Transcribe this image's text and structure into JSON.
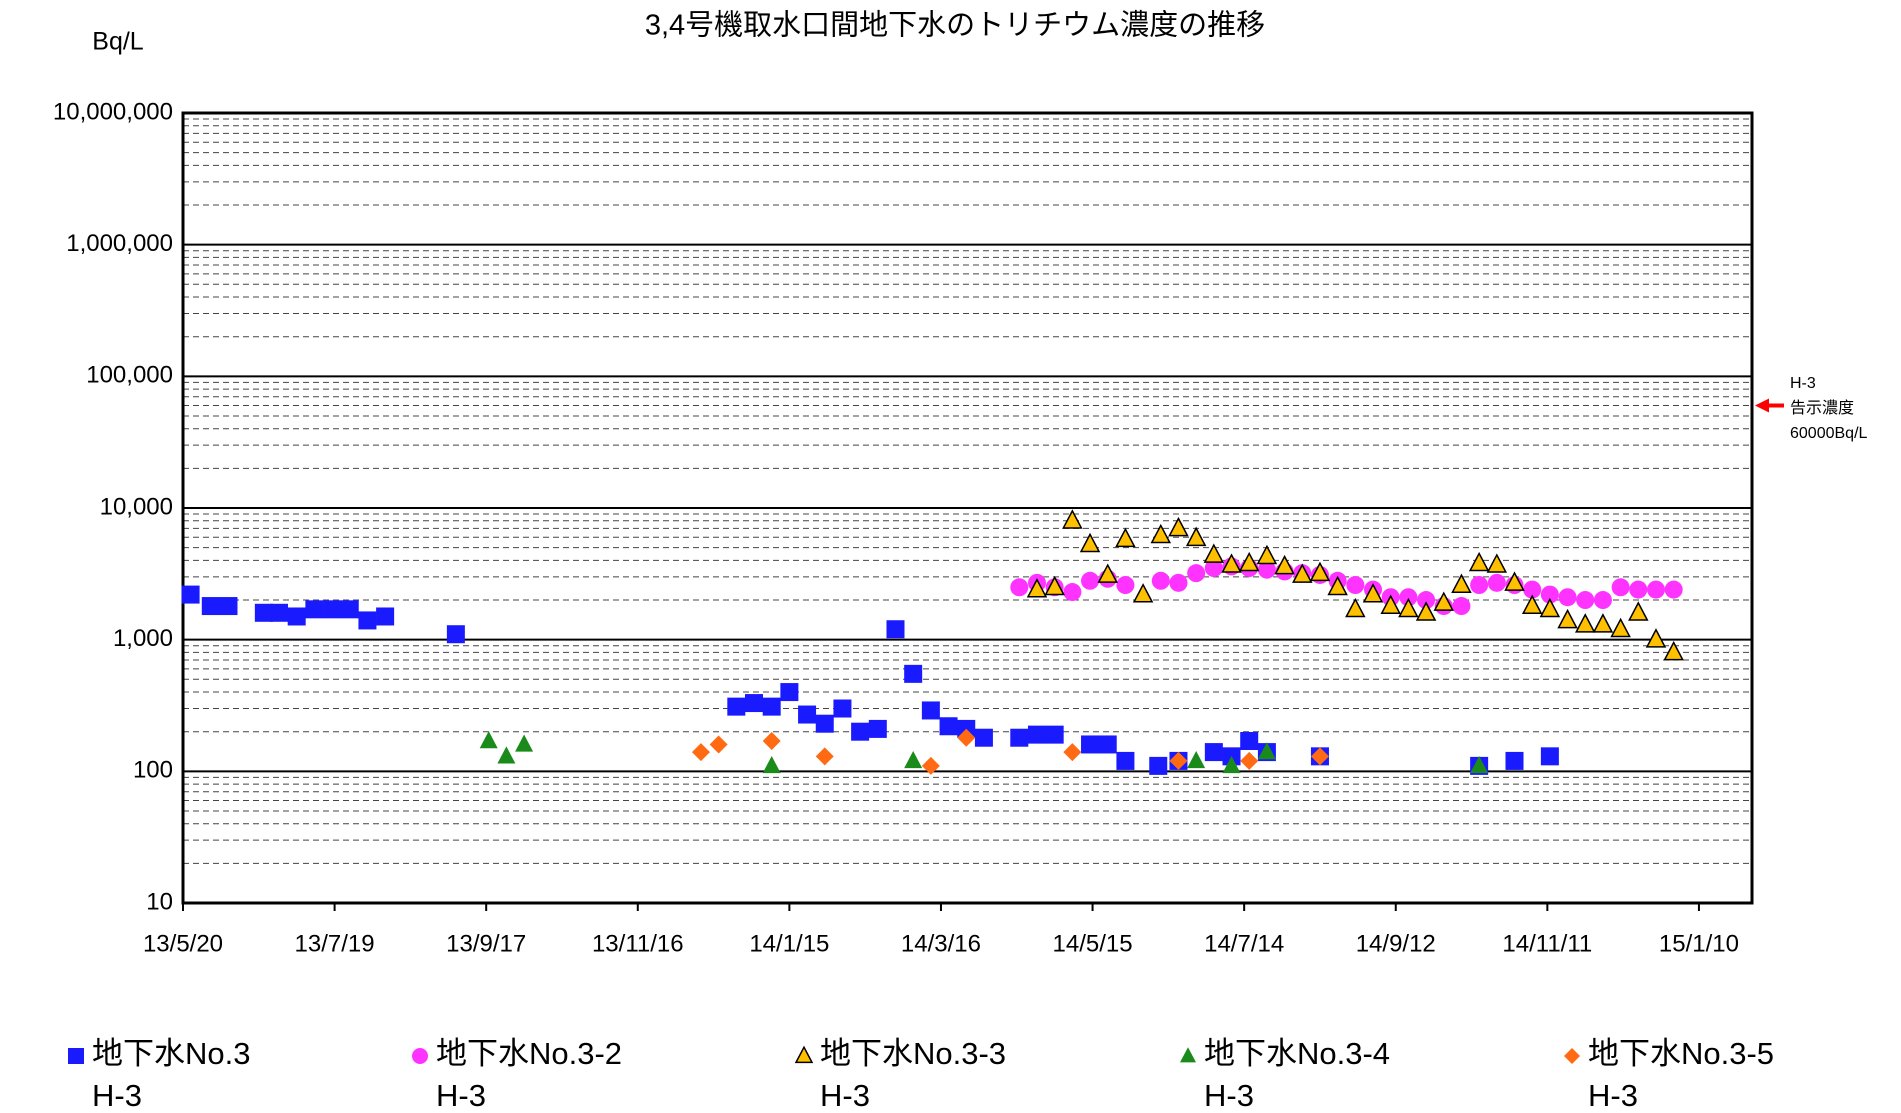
{
  "chart_data": {
    "type": "scatter",
    "title": "3,4号機取水口間地下水のトリチウム濃度の推移",
    "y_label": "Bq/L",
    "log_y": true,
    "grid": true,
    "minor_grid": true,
    "xlim": [
      "13/5/20",
      "15/1/31"
    ],
    "xticks": [
      "13/5/20",
      "13/7/19",
      "13/9/17",
      "13/11/16",
      "14/1/15",
      "14/3/16",
      "14/5/15",
      "14/7/14",
      "14/9/12",
      "14/11/11",
      "15/1/10"
    ],
    "ylim": [
      10,
      10000000
    ],
    "yticks": [
      {
        "value": 10,
        "label": "10"
      },
      {
        "value": 100,
        "label": "100"
      },
      {
        "value": 1000,
        "label": "1,000"
      },
      {
        "value": 10000,
        "label": "10,000"
      },
      {
        "value": 100000,
        "label": "100,000"
      },
      {
        "value": 1000000,
        "label": "1,000,000"
      },
      {
        "value": 10000000,
        "label": "10,000,000"
      }
    ],
    "reference": {
      "value": 60000,
      "color": "#ff0000",
      "labels": [
        "H-3",
        "告示濃度",
        "60000Bq/L"
      ]
    },
    "series": [
      {
        "name": "地下水No.3",
        "sub": "H-3",
        "marker": "square",
        "color": "#1a1aff",
        "x": [
          "13/5/23",
          "13/5/31",
          "13/6/7",
          "13/6/21",
          "13/6/27",
          "13/7/4",
          "13/7/11",
          "13/7/18",
          "13/7/25",
          "13/8/1",
          "13/8/8",
          "13/9/5",
          "13/12/25",
          "14/1/1",
          "14/1/8",
          "14/1/15",
          "14/1/22",
          "14/1/29",
          "14/2/5",
          "14/2/12",
          "14/2/19",
          "14/2/26",
          "14/3/5",
          "14/3/12",
          "14/3/19",
          "14/3/26",
          "14/4/2",
          "14/4/16",
          "14/4/23",
          "14/4/30",
          "14/5/14",
          "14/5/21",
          "14/5/28",
          "14/6/10",
          "14/6/18",
          "14/7/2",
          "14/7/9",
          "14/7/16",
          "14/7/23",
          "14/8/13",
          "14/10/15",
          "14/10/29",
          "14/11/12"
        ],
        "values": [
          2200,
          1800,
          1800,
          1600,
          1600,
          1500,
          1700,
          1700,
          1700,
          1400,
          1500,
          1100,
          310,
          330,
          310,
          400,
          270,
          230,
          300,
          200,
          210,
          1200,
          550,
          290,
          220,
          210,
          180,
          180,
          190,
          190,
          160,
          160,
          120,
          110,
          120,
          140,
          130,
          170,
          140,
          130,
          110,
          120,
          130
        ]
      },
      {
        "name": "地下水No.3-2",
        "sub": "H-3",
        "marker": "circle",
        "color": "#ff33ff",
        "x": [
          "14/4/16",
          "14/4/23",
          "14/4/30",
          "14/5/7",
          "14/5/14",
          "14/5/21",
          "14/5/28",
          "14/6/11",
          "14/6/18",
          "14/6/25",
          "14/7/2",
          "14/7/9",
          "14/7/16",
          "14/7/23",
          "14/7/30",
          "14/8/6",
          "14/8/13",
          "14/8/20",
          "14/8/27",
          "14/9/3",
          "14/9/10",
          "14/9/17",
          "14/9/24",
          "14/10/1",
          "14/10/8",
          "14/10/15",
          "14/10/22",
          "14/10/29",
          "14/11/5",
          "14/11/12",
          "14/11/19",
          "14/11/26",
          "14/12/3",
          "14/12/10",
          "14/12/17",
          "14/12/24",
          "14/12/31"
        ],
        "values": [
          2500,
          2700,
          2500,
          2300,
          2800,
          2900,
          2600,
          2800,
          2700,
          3200,
          3500,
          3600,
          3500,
          3400,
          3300,
          3200,
          3100,
          2800,
          2600,
          2400,
          2100,
          2100,
          2000,
          1800,
          1800,
          2600,
          2700,
          2600,
          2400,
          2200,
          2100,
          2000,
          2000,
          2500,
          2400,
          2400,
          2400
        ]
      },
      {
        "name": "地下水No.3-3",
        "sub": "H-3",
        "marker": "triangle",
        "color": "#ffc000",
        "stroke": "#000000",
        "x": [
          "14/4/23",
          "14/4/30",
          "14/5/7",
          "14/5/14",
          "14/5/21",
          "14/5/28",
          "14/6/4",
          "14/6/11",
          "14/6/18",
          "14/6/25",
          "14/7/2",
          "14/7/9",
          "14/7/16",
          "14/7/23",
          "14/7/30",
          "14/8/6",
          "14/8/13",
          "14/8/20",
          "14/8/27",
          "14/9/3",
          "14/9/10",
          "14/9/17",
          "14/9/24",
          "14/10/1",
          "14/10/8",
          "14/10/15",
          "14/10/22",
          "14/10/29",
          "14/11/5",
          "14/11/12",
          "14/11/19",
          "14/11/26",
          "14/12/3",
          "14/12/10",
          "14/12/17",
          "14/12/24",
          "14/12/31"
        ],
        "values": [
          2400,
          2500,
          8000,
          5300,
          3100,
          5800,
          2200,
          6200,
          7000,
          5900,
          4400,
          3700,
          3800,
          4300,
          3600,
          3100,
          3200,
          2500,
          1700,
          2200,
          1800,
          1700,
          1600,
          1900,
          2600,
          3800,
          3700,
          2700,
          1800,
          1700,
          1400,
          1300,
          1300,
          1200,
          1600,
          1000,
          800
        ]
      },
      {
        "name": "地下水No.3-4",
        "sub": "H-3",
        "marker": "triangle",
        "color": "#1a8a1a",
        "x": [
          "13/9/18",
          "13/9/25",
          "13/10/2",
          "14/1/8",
          "14/3/5",
          "14/6/25",
          "14/7/9",
          "14/7/23",
          "14/10/15"
        ],
        "values": [
          170,
          130,
          160,
          110,
          120,
          120,
          110,
          140,
          110
        ]
      },
      {
        "name": "地下水No.3-5",
        "sub": "H-3",
        "marker": "diamond",
        "color": "#ff6a13",
        "x": [
          "13/12/11",
          "13/12/18",
          "14/1/8",
          "14/1/29",
          "14/3/12",
          "14/3/26",
          "14/5/7",
          "14/6/18",
          "14/7/16",
          "14/8/13"
        ],
        "values": [
          140,
          160,
          170,
          130,
          110,
          180,
          140,
          120,
          120,
          130
        ]
      }
    ]
  }
}
